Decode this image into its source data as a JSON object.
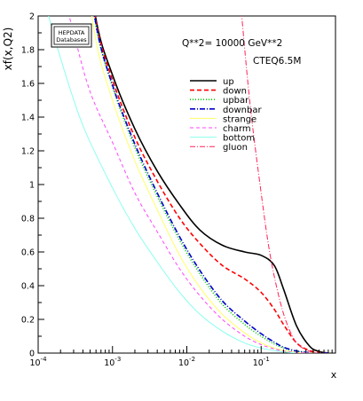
{
  "chart_data": {
    "type": "line",
    "title": "",
    "xlabel": "x",
    "ylabel": "xf(x,Q2)",
    "annotation": "Q**2=  10000    GeV**2",
    "pdf_set": "CTEQ6.5M",
    "logo": {
      "line1": "HEPDATA",
      "line2": "Databases"
    },
    "x_scale": "log",
    "xlim": [
      0.0001,
      1
    ],
    "ylim": [
      0,
      2
    ],
    "grid": false,
    "legend_position": "top-right",
    "x_ticks": [
      {
        "value": 0.0001,
        "base": "10",
        "exp": "-4"
      },
      {
        "value": 0.001,
        "base": "10",
        "exp": "-3"
      },
      {
        "value": 0.01,
        "base": "10",
        "exp": "-2"
      },
      {
        "value": 0.1,
        "base": "10",
        "exp": "-1"
      }
    ],
    "y_ticks": [
      {
        "value": 0,
        "label": "0"
      },
      {
        "value": 0.2,
        "label": "0.2"
      },
      {
        "value": 0.4,
        "label": "0.4"
      },
      {
        "value": 0.6,
        "label": "0.6"
      },
      {
        "value": 0.8,
        "label": "0.8"
      },
      {
        "value": 1,
        "label": "1"
      },
      {
        "value": 1.2,
        "label": "1.2"
      },
      {
        "value": 1.4,
        "label": "1.4"
      },
      {
        "value": 1.6,
        "label": "1.6"
      },
      {
        "value": 1.8,
        "label": "1.8"
      },
      {
        "value": 2,
        "label": "2"
      }
    ],
    "series": [
      {
        "name": "up",
        "color": "#000000",
        "dash": "solid",
        "width": 1.6,
        "x": [
          0.0004,
          0.0006,
          0.001,
          0.002,
          0.004,
          0.008,
          0.015,
          0.03,
          0.06,
          0.1,
          0.15,
          0.2,
          0.3,
          0.45,
          0.6,
          0.8
        ],
        "y": [
          2.6,
          1.98,
          1.65,
          1.33,
          1.08,
          0.88,
          0.73,
          0.64,
          0.6,
          0.58,
          0.52,
          0.38,
          0.16,
          0.04,
          0.01,
          0
        ]
      },
      {
        "name": "down",
        "color": "#ff0000",
        "dash": "5,3",
        "width": 1.6,
        "x": [
          0.0004,
          0.0006,
          0.001,
          0.002,
          0.004,
          0.008,
          0.015,
          0.03,
          0.06,
          0.1,
          0.15,
          0.2,
          0.3,
          0.45,
          0.6,
          0.8
        ],
        "y": [
          2.6,
          1.97,
          1.62,
          1.28,
          1.02,
          0.8,
          0.65,
          0.52,
          0.44,
          0.36,
          0.26,
          0.17,
          0.06,
          0.015,
          0.004,
          0
        ]
      },
      {
        "name": "upbar",
        "color": "#00cc00",
        "dash": "1,2",
        "width": 1.6,
        "x": [
          0.0004,
          0.0006,
          0.001,
          0.002,
          0.004,
          0.008,
          0.015,
          0.03,
          0.06,
          0.1,
          0.15,
          0.2,
          0.3,
          0.45,
          0.6,
          0.8
        ],
        "y": [
          2.55,
          1.94,
          1.58,
          1.22,
          0.93,
          0.67,
          0.47,
          0.29,
          0.17,
          0.1,
          0.055,
          0.03,
          0.01,
          0.002,
          0,
          0
        ]
      },
      {
        "name": "downbar",
        "color": "#0000cc",
        "dash": "6,2,1,2",
        "width": 1.6,
        "x": [
          0.0004,
          0.0006,
          0.001,
          0.002,
          0.004,
          0.008,
          0.015,
          0.03,
          0.06,
          0.1,
          0.15,
          0.2,
          0.3,
          0.45,
          0.6,
          0.8
        ],
        "y": [
          2.56,
          1.95,
          1.59,
          1.24,
          0.95,
          0.69,
          0.49,
          0.31,
          0.19,
          0.115,
          0.065,
          0.035,
          0.012,
          0.002,
          0,
          0
        ]
      },
      {
        "name": "strange",
        "color": "#ffff66",
        "dash": "solid",
        "width": 1.0,
        "x": [
          0.0004,
          0.0006,
          0.001,
          0.002,
          0.004,
          0.008,
          0.015,
          0.03,
          0.06,
          0.1,
          0.15,
          0.2,
          0.3,
          0.45,
          0.6
        ],
        "y": [
          2.4,
          1.85,
          1.5,
          1.14,
          0.85,
          0.58,
          0.39,
          0.23,
          0.12,
          0.06,
          0.03,
          0.015,
          0.004,
          0,
          0
        ]
      },
      {
        "name": "charm",
        "color": "#ff44ff",
        "dash": "4,3",
        "width": 1.0,
        "x": [
          0.0002,
          0.0003,
          0.0005,
          0.001,
          0.002,
          0.004,
          0.008,
          0.015,
          0.03,
          0.06,
          0.1,
          0.15,
          0.2,
          0.3,
          0.45
        ],
        "y": [
          2.2,
          1.9,
          1.55,
          1.25,
          0.95,
          0.72,
          0.5,
          0.34,
          0.2,
          0.1,
          0.05,
          0.025,
          0.012,
          0.003,
          0
        ]
      },
      {
        "name": "bottom",
        "color": "#88ffee",
        "dash": "solid",
        "width": 1.0,
        "x": [
          0.00012,
          0.0002,
          0.0004,
          0.001,
          0.002,
          0.004,
          0.008,
          0.015,
          0.03,
          0.06,
          0.1,
          0.15,
          0.2,
          0.3
        ],
        "y": [
          2.1,
          1.75,
          1.35,
          0.98,
          0.74,
          0.54,
          0.36,
          0.23,
          0.13,
          0.06,
          0.03,
          0.015,
          0.007,
          0
        ]
      },
      {
        "name": "gluon",
        "color": "#ff2255",
        "dash": "6,2,1,2",
        "width": 1.0,
        "x": [
          0.05,
          0.07,
          0.1,
          0.13,
          0.17,
          0.22,
          0.3,
          0.45,
          0.6
        ],
        "y": [
          2.2,
          1.5,
          0.95,
          0.6,
          0.35,
          0.18,
          0.06,
          0.01,
          0
        ]
      }
    ]
  }
}
